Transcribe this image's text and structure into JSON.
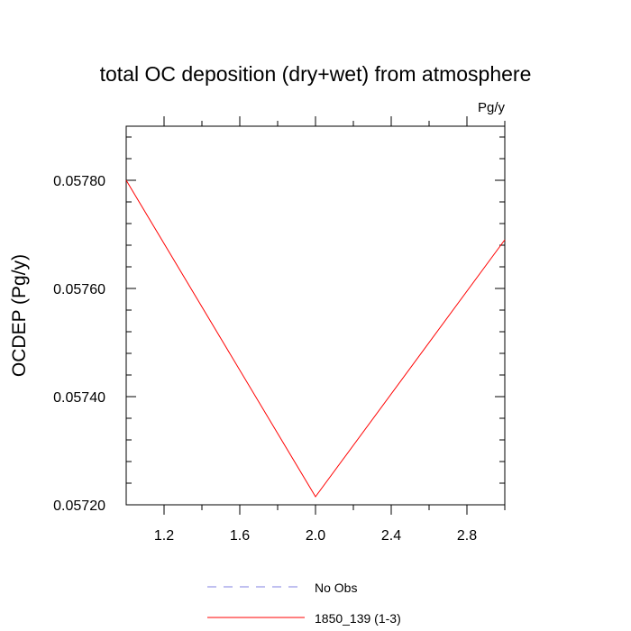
{
  "chart_data": {
    "type": "line",
    "title": "total OC deposition (dry+wet) from atmosphere",
    "units": "Pg/y",
    "xlabel": "",
    "ylabel": "OCDEP  (Pg/y)",
    "xlim": [
      1.0,
      3.0
    ],
    "ylim": [
      0.0572,
      0.0579
    ],
    "x_ticks": [
      1.2,
      1.6,
      2.0,
      2.4,
      2.8
    ],
    "x_tick_labels": [
      "1.2",
      "1.6",
      "2.0",
      "2.4",
      "2.8"
    ],
    "x_minor_ticks": [
      1.4,
      1.8,
      2.2,
      2.6,
      3.0
    ],
    "y_ticks": [
      0.0572,
      0.0574,
      0.0576,
      0.0578
    ],
    "y_tick_labels": [
      "0.05720",
      "0.05740",
      "0.05760",
      "0.05780"
    ],
    "y_minor_ticks": [
      0.05724,
      0.05728,
      0.05732,
      0.05736,
      0.05744,
      0.05748,
      0.05752,
      0.05756,
      0.05764,
      0.05768,
      0.05772,
      0.05776,
      0.05784,
      0.05788
    ],
    "series": [
      {
        "name": "No Obs",
        "color": "#8080e0",
        "dashed": true,
        "x": [],
        "y": []
      },
      {
        "name": "1850_139 (1-3)",
        "color": "#ff0000",
        "dashed": false,
        "x": [
          1,
          2,
          3
        ],
        "y": [
          0.0578,
          0.057215,
          0.05769
        ]
      }
    ],
    "legend_position": "bottom-center"
  }
}
